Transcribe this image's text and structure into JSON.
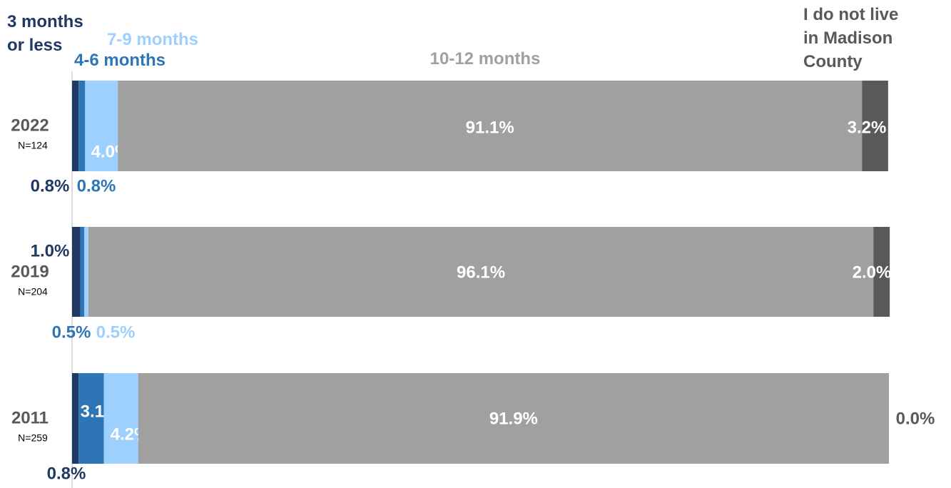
{
  "chart_data": {
    "type": "stacked-bar-horizontal",
    "categories": [
      "2022",
      "2019",
      "2011"
    ],
    "sample_sizes": [
      "N=124",
      "N=204",
      "N=259"
    ],
    "xlim": [
      0,
      100
    ],
    "series": [
      {
        "name": "3 months or less",
        "color": "#1f3864",
        "values": [
          0.8,
          1.0,
          0.8
        ],
        "value_labels": [
          "0.8%",
          "1.0%",
          "0.8%"
        ]
      },
      {
        "name": "4-6 months",
        "color": "#2e75b6",
        "values": [
          0.8,
          0.5,
          3.1
        ],
        "value_labels": [
          "0.8%",
          "0.5%",
          "3.1%"
        ]
      },
      {
        "name": "7-9 months",
        "color": "#9dcfff",
        "values": [
          4.0,
          0.5,
          4.2
        ],
        "value_labels": [
          "4.0%",
          "0.5%",
          "4.2%"
        ]
      },
      {
        "name": "10-12 months",
        "color": "#a0a0a0",
        "values": [
          91.1,
          96.1,
          91.9
        ],
        "value_labels": [
          "91.1%",
          "96.1%",
          "91.9%"
        ]
      },
      {
        "name": "I do not live in Madison County",
        "color": "#595959",
        "values": [
          3.2,
          2.0,
          0.0
        ],
        "value_labels": [
          "3.2%",
          "2.0%",
          "0.0%"
        ]
      }
    ]
  }
}
